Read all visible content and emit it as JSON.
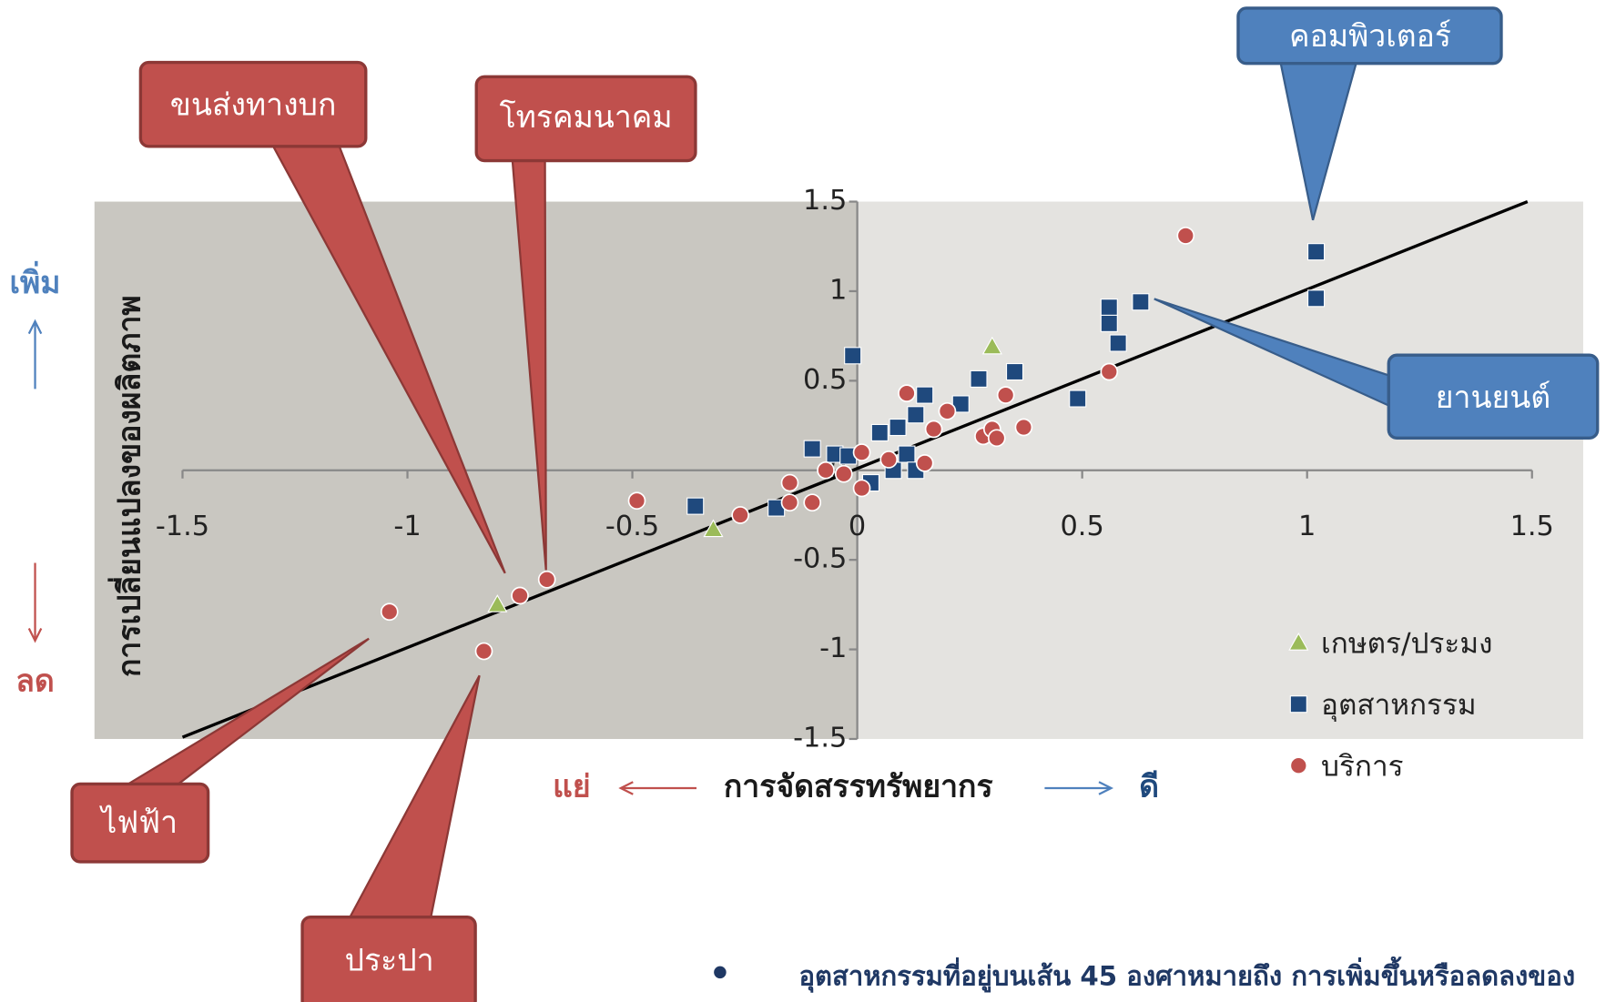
{
  "chart_data": {
    "type": "scatter",
    "x_label": "การจัดสรรทรัพยากร",
    "y_label": "การเปลี่ยนแปลงของผลิตภาพ",
    "x_direction": {
      "negative": "แย่",
      "positive": "ดี"
    },
    "y_direction": {
      "positive": "เพิ่ม",
      "negative": "ลด"
    },
    "xlim": [
      -1.5,
      1.5
    ],
    "xticks": [
      -1.5,
      -1,
      -0.5,
      0,
      0.5,
      1,
      1.5
    ],
    "ylim": [
      -1.5,
      1.5
    ],
    "yticks": [
      -1.5,
      -1,
      -0.5,
      0,
      0.5,
      1,
      1.5
    ],
    "legend": "lower right",
    "series": [
      {
        "name": "เกษตร/ประมง",
        "color": "#9bbb59",
        "marker": "triangle",
        "x": [
          -0.8,
          -0.32,
          0.3
        ],
        "values": [
          -0.75,
          -0.33,
          0.69
        ]
      },
      {
        "name": "อุตสาหกรรม",
        "color": "#1f497d",
        "marker": "square",
        "x": [
          -0.36,
          -0.01,
          -0.1,
          -0.18,
          -0.05,
          -0.02,
          0.03,
          0.05,
          0.08,
          0.09,
          0.11,
          0.13,
          0.13,
          0.15,
          0.23,
          0.27,
          0.35,
          0.49,
          0.56,
          0.56,
          0.58,
          0.63,
          1.02,
          1.02
        ],
        "values": [
          -0.2,
          0.64,
          0.12,
          -0.21,
          0.09,
          0.08,
          -0.07,
          0.21,
          0,
          0.24,
          0.09,
          0.31,
          0,
          0.42,
          0.37,
          0.51,
          0.55,
          0.4,
          0.91,
          0.82,
          0.71,
          0.94,
          1.22,
          0.96
        ]
      },
      {
        "name": "บริการ",
        "color": "#c0504d",
        "marker": "circle",
        "x": [
          -1.04,
          -0.83,
          -0.75,
          -0.69,
          -0.49,
          -0.26,
          -0.15,
          -0.15,
          -0.1,
          -0.07,
          -0.03,
          0.01,
          0.01,
          0.07,
          0.11,
          0.15,
          0.17,
          0.2,
          0.28,
          0.3,
          0.31,
          0.33,
          0.37,
          0.56,
          0.73
        ],
        "values": [
          -0.79,
          -1.01,
          -0.7,
          -0.61,
          -0.17,
          -0.25,
          -0.07,
          -0.18,
          -0.18,
          0,
          -0.02,
          0.1,
          -0.1,
          0.06,
          0.43,
          0.04,
          0.23,
          0.33,
          0.19,
          0.23,
          0.18,
          0.42,
          0.24,
          0.55,
          1.31
        ]
      }
    ],
    "trendline": {
      "color": "#000000",
      "x": [
        -1.5,
        1.49
      ],
      "y": [
        -1.49,
        1.5
      ]
    },
    "annotations": [
      "ขนส่งทางบก",
      "โทรคมนาคม",
      "คอมพิวเตอร์",
      "ยานยนต์",
      "ไฟฟ้า",
      "ประปา"
    ]
  },
  "note": "อุตสาหกรรมที่อยู่บนเส้น 45 องศาหมายถึง การเพิ่มขึ้นหรือลดลงของ"
}
